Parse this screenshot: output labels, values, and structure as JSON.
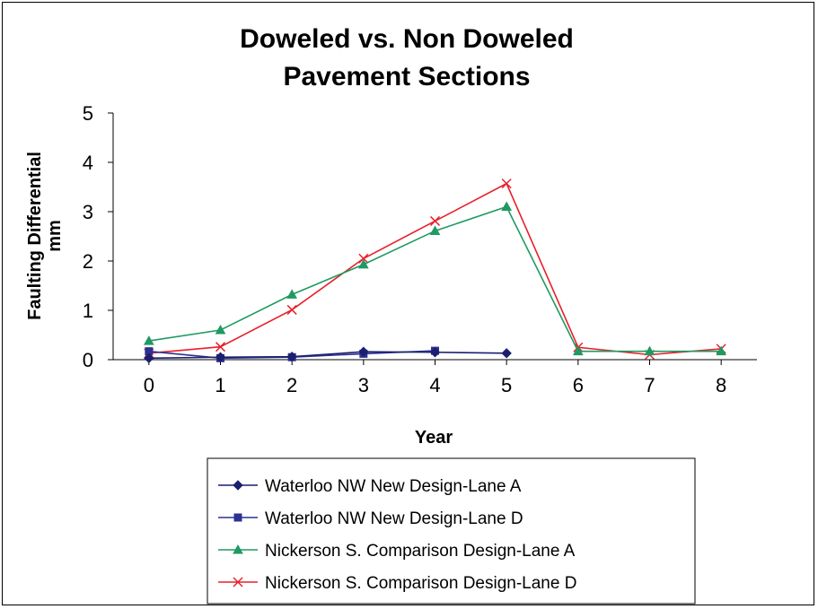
{
  "chart_data": {
    "type": "line",
    "title_lines": [
      "Doweled vs. Non Doweled",
      "Pavement Sections"
    ],
    "xlabel": "Year",
    "ylabel_lines": [
      "Faulting Differential",
      "mm"
    ],
    "x": [
      0,
      1,
      2,
      3,
      4,
      5,
      6,
      7,
      8
    ],
    "xlim": [
      -0.5,
      8.5
    ],
    "ylim": [
      0,
      5
    ],
    "yticks": [
      0,
      1,
      2,
      3,
      4,
      5
    ],
    "grid": false,
    "legend_position": "bottom",
    "series": [
      {
        "name": "Waterloo NW New Design-Lane A",
        "color": "#1a1f6e",
        "marker": "diamond",
        "points": [
          [
            0,
            0.03
          ],
          [
            1,
            0.05
          ],
          [
            2,
            0.06
          ],
          [
            3,
            0.16
          ],
          [
            4,
            0.15
          ],
          [
            5,
            0.13
          ]
        ]
      },
      {
        "name": "Waterloo NW New Design-Lane D",
        "color": "#2e3192",
        "marker": "square",
        "points": [
          [
            0,
            0.17
          ],
          [
            1,
            0.03
          ],
          [
            2,
            0.05
          ],
          [
            3,
            0.12
          ],
          [
            4,
            0.18
          ]
        ]
      },
      {
        "name": "Nickerson S. Comparison Design-Lane A",
        "color": "#1f9a63",
        "marker": "triangle",
        "points": [
          [
            0,
            0.38
          ],
          [
            1,
            0.6
          ],
          [
            2,
            1.32
          ],
          [
            3,
            1.93
          ],
          [
            4,
            2.61
          ],
          [
            5,
            3.1
          ],
          [
            6,
            0.17
          ],
          [
            7,
            0.17
          ],
          [
            8,
            0.17
          ]
        ]
      },
      {
        "name": "Nickerson S. Comparison Design-Lane D",
        "color": "#e8202a",
        "marker": "x",
        "points": [
          [
            0,
            0.13
          ],
          [
            1,
            0.26
          ],
          [
            2,
            1.01
          ],
          [
            3,
            2.05
          ],
          [
            4,
            2.81
          ],
          [
            5,
            3.57
          ],
          [
            6,
            0.25
          ],
          [
            7,
            0.1
          ],
          [
            8,
            0.22
          ]
        ]
      }
    ]
  }
}
